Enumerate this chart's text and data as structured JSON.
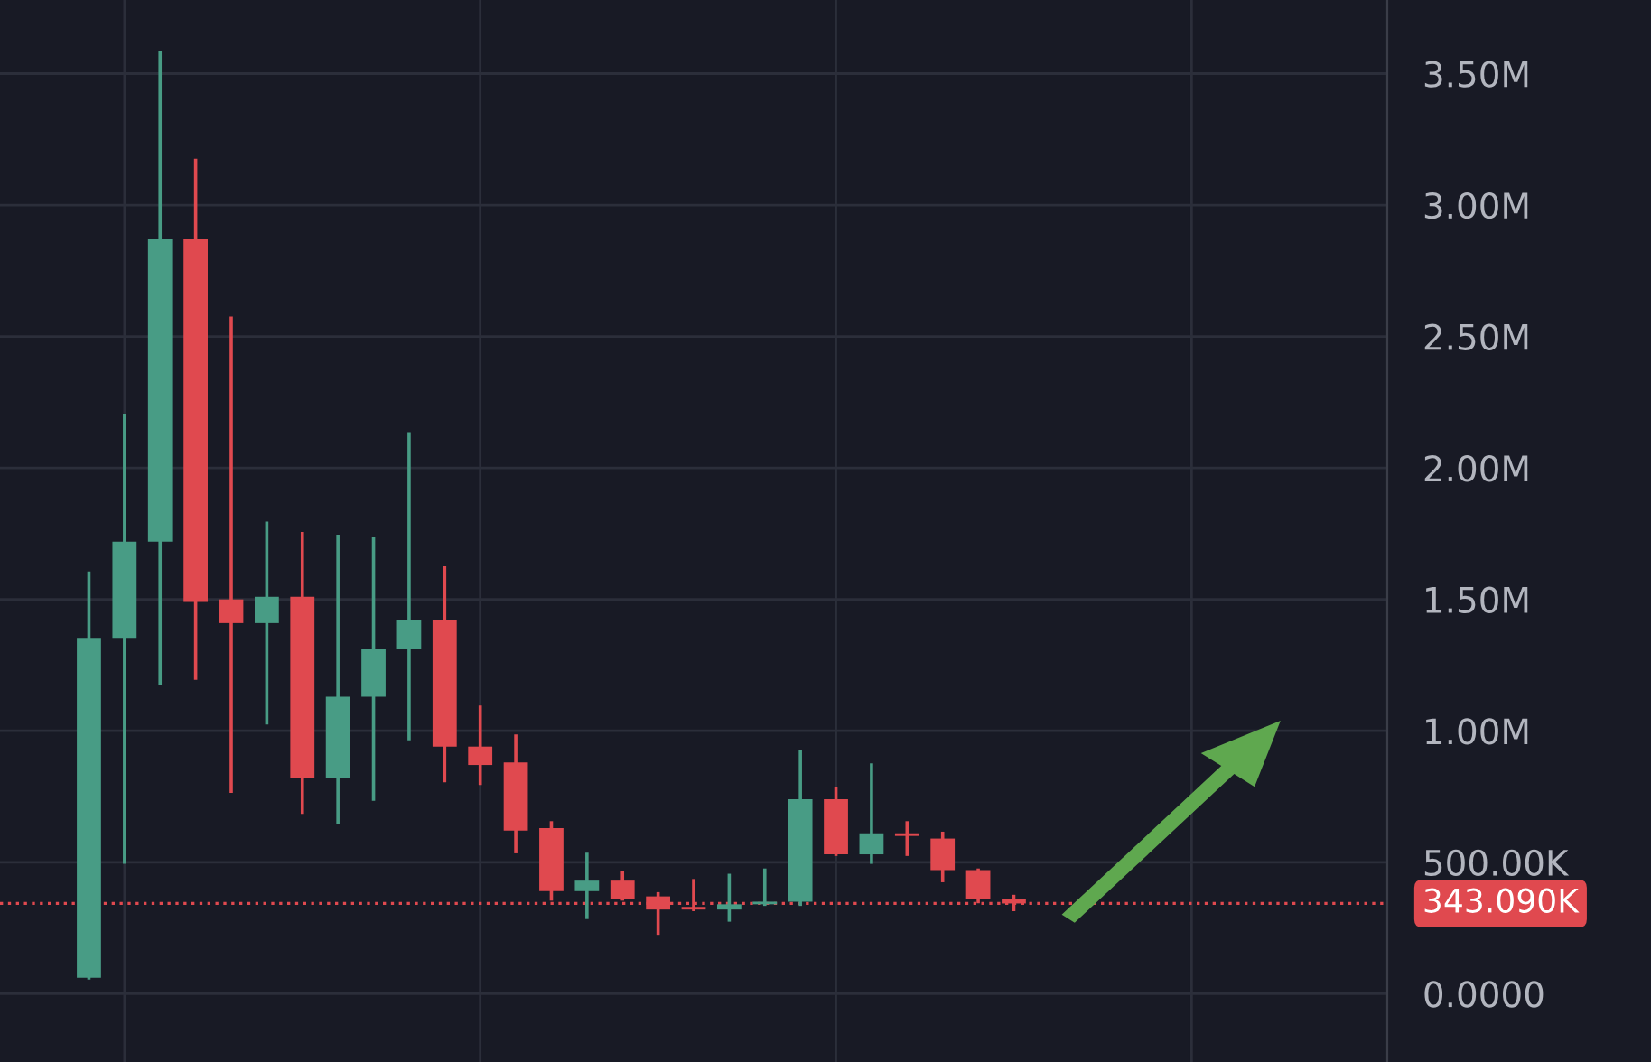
{
  "chart_data": {
    "type": "candlestick",
    "categories": [
      null,
      null,
      null,
      null,
      null,
      null,
      null,
      null,
      null,
      null,
      null,
      null,
      null,
      null,
      null,
      null,
      null,
      null,
      null,
      null,
      null,
      null,
      null,
      null,
      null,
      null,
      null,
      null,
      null,
      null,
      null,
      null,
      null,
      null,
      null,
      null,
      null,
      null,
      null
    ],
    "ohlc": [
      null,
      null,
      [
        60000,
        1600000,
        60000,
        1350000
      ],
      [
        1350000,
        2200000,
        500000,
        1720000
      ],
      [
        1720000,
        3580000,
        1180000,
        2870000
      ],
      [
        2870000,
        3170000,
        1200000,
        1490000
      ],
      [
        1500000,
        2570000,
        770000,
        1410000
      ],
      [
        1410000,
        1790000,
        1030000,
        1510000
      ],
      [
        1510000,
        1750000,
        690000,
        820000
      ],
      [
        820000,
        1740000,
        650000,
        1130000
      ],
      [
        1130000,
        1730000,
        740000,
        1310000
      ],
      [
        1310000,
        2130000,
        970000,
        1420000
      ],
      [
        1420000,
        1620000,
        810000,
        940000
      ],
      [
        940000,
        1090000,
        800000,
        870000
      ],
      [
        880000,
        980000,
        540000,
        620000
      ],
      [
        630000,
        650000,
        360000,
        390000
      ],
      [
        390000,
        530000,
        290000,
        430000
      ],
      [
        430000,
        460000,
        360000,
        360000
      ],
      [
        370000,
        380000,
        230000,
        320000
      ],
      [
        330000,
        430000,
        320000,
        320000
      ],
      [
        320000,
        450000,
        280000,
        340000
      ],
      [
        340000,
        470000,
        340000,
        350000
      ],
      [
        350000,
        920000,
        340000,
        740000
      ],
      [
        740000,
        780000,
        530000,
        530000
      ],
      [
        530000,
        870000,
        500000,
        610000
      ],
      [
        610000,
        650000,
        530000,
        600000
      ],
      [
        590000,
        610000,
        430000,
        470000
      ],
      [
        470000,
        470000,
        350000,
        360000
      ],
      [
        360000,
        370000,
        320000,
        343090
      ],
      null,
      null,
      null,
      null,
      null,
      null,
      null,
      null,
      null,
      null
    ],
    "colors": [
      null,
      null,
      "#489c85",
      "#489c85",
      "#489c85",
      "#e0494f",
      "#e0494f",
      "#489c85",
      "#e0494f",
      "#489c85",
      "#489c85",
      "#489c85",
      "#e0494f",
      "#e0494f",
      "#e0494f",
      "#e0494f",
      "#489c85",
      "#e0494f",
      "#e0494f",
      "#e0494f",
      "#489c85",
      "#489c85",
      "#489c85",
      "#e0494f",
      "#489c85",
      "#e0494f",
      "#e0494f",
      "#e0494f",
      "#e0494f",
      null,
      null,
      null,
      null,
      null,
      null,
      null,
      null,
      null,
      null
    ],
    "ylim": [
      -260000,
      3780000
    ],
    "yticks": [
      {
        "value": 0,
        "label": "0.0000"
      },
      {
        "value": 500000,
        "label": "500.00K"
      },
      {
        "value": 1000000,
        "label": "1.00M"
      },
      {
        "value": 1500000,
        "label": "1.50M"
      },
      {
        "value": 2000000,
        "label": "2.00M"
      },
      {
        "value": 2500000,
        "label": "2.50M"
      },
      {
        "value": 3000000,
        "label": "3.00M"
      },
      {
        "value": 3500000,
        "label": "3.50M"
      }
    ],
    "ref_lines": [
      {
        "axis": "y",
        "value": 343090,
        "label": "343.090K",
        "color": "#e0494f",
        "line_style": "dotted"
      }
    ],
    "grid": true
  }
}
